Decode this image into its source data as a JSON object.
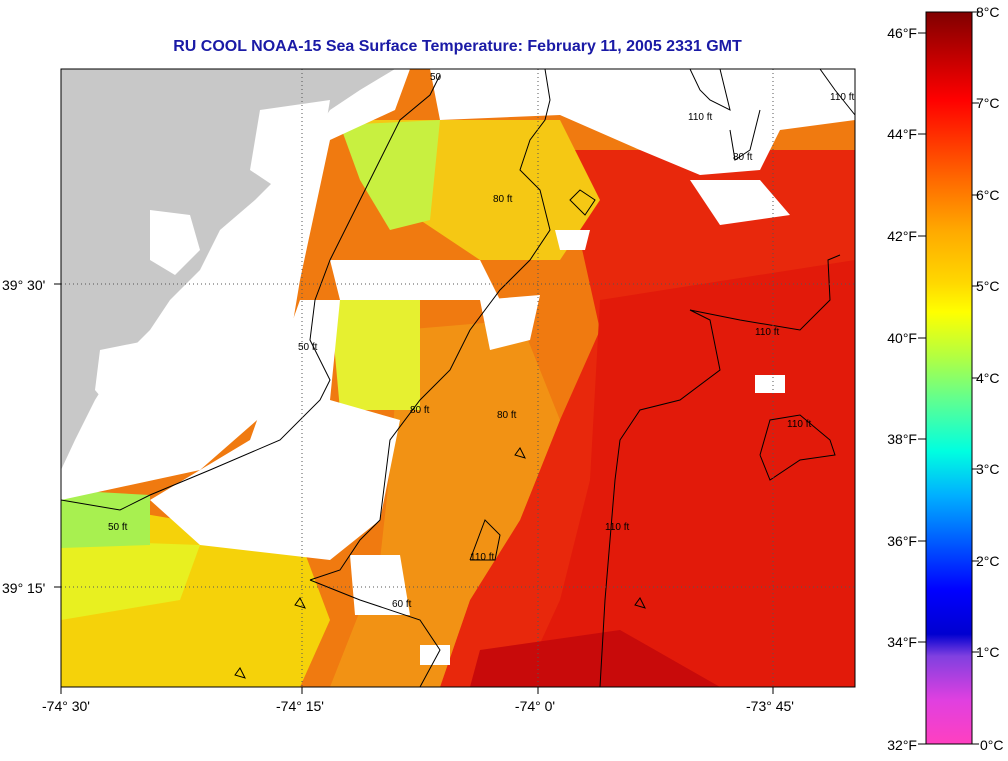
{
  "title": "RU COOL  NOAA-15  Sea Surface Temperature:  February 11, 2005 2331 GMT",
  "x_ticks": [
    "-74° 30'",
    "-74° 15'",
    "-74° 0'",
    "-73° 45'"
  ],
  "y_ticks": [
    "39° 30'",
    "39° 15'"
  ],
  "colorbar": {
    "fahrenheit_labels": [
      "46°F",
      "44°F",
      "42°F",
      "40°F",
      "38°F",
      "36°F",
      "34°F",
      "32°F"
    ],
    "celsius_labels": [
      "8°C",
      "7°C",
      "6°C",
      "5°C",
      "4°C",
      "3°C",
      "2°C",
      "1°C",
      "0°C"
    ]
  },
  "contour_labels": {
    "c50_top": "50",
    "c50_left": "50 ft",
    "c50_sw": "50 ft",
    "c80_north": "80 ft",
    "c80_mid": "80 ft",
    "c80_small": "80 ft",
    "c80_south": "60 ft",
    "c80_ne": "80 ft",
    "c110_top": "110 ft",
    "c110_ne": "110 ft",
    "c110_east": "110 ft",
    "c110_se": "110 ft",
    "c110_mid": "110 ft",
    "c110_south": "110 ft"
  },
  "colors": {
    "land": "#c8c8c8",
    "title": "#1a1aa6"
  }
}
